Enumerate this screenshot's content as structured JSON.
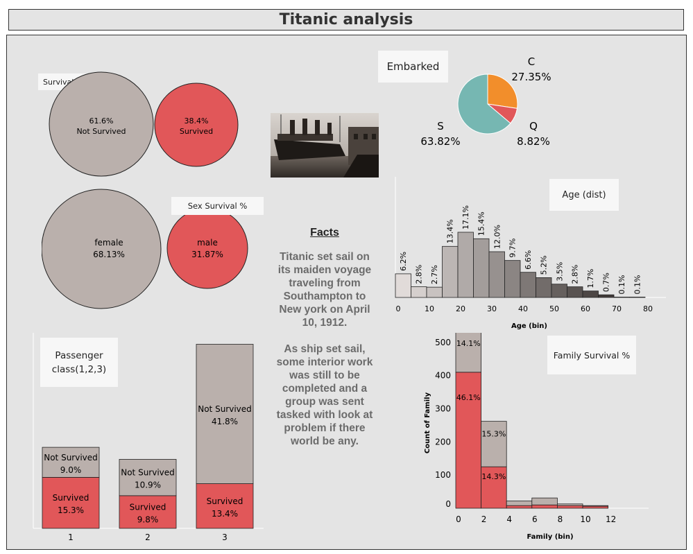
{
  "title": "Titanic analysis",
  "survival_bubbles": {
    "label": "Survival %",
    "items": [
      {
        "pct": "61.6%",
        "name": "Not Survived",
        "color": "#bab0ac"
      },
      {
        "pct": "38.4%",
        "name": "Survived",
        "color": "#e15759"
      }
    ]
  },
  "sex_bubbles": {
    "label": "Sex Survival %",
    "items": [
      {
        "name": "female",
        "pct": "68.13%",
        "color": "#bab0ac"
      },
      {
        "name": "male",
        "pct": "31.87%",
        "color": "#e15759"
      }
    ]
  },
  "embarked": {
    "label": "Embarked",
    "slices": [
      {
        "name": "C",
        "pct": "27.35%",
        "value": 27.35,
        "color": "#f28e2b"
      },
      {
        "name": "Q",
        "pct": "8.82%",
        "value": 8.82,
        "color": "#e15759"
      },
      {
        "name": "S",
        "pct": "63.82%",
        "value": 63.82,
        "color": "#76b7b2"
      }
    ]
  },
  "facts": {
    "heading": "Facts",
    "p1": "Titanic set sail on its maiden voyage traveling from Southampton to New york on April 10, 1912.",
    "p2": "As ship set sail, some interior work was still to be completed and a group was sent tasked with look at problem if there world be any."
  },
  "chart_data": [
    {
      "type": "bar",
      "title": "Age (dist)",
      "xlabel": "Age (bin)",
      "x_ticks": [
        0,
        10,
        20,
        30,
        40,
        50,
        60,
        70,
        80
      ],
      "bin_width": 5,
      "bins": [
        0,
        5,
        10,
        15,
        20,
        25,
        30,
        35,
        40,
        45,
        50,
        55,
        60,
        65,
        70,
        75,
        80
      ],
      "values": [
        6.2,
        2.8,
        2.7,
        13.4,
        17.1,
        15.4,
        12.0,
        9.7,
        6.6,
        5.2,
        3.5,
        2.8,
        1.7,
        0.7,
        0.1,
        0.1
      ],
      "labels": [
        "6.2%",
        "2.8%",
        "2.7%",
        "13.4%",
        "17.1%",
        "15.4%",
        "12.0%",
        "9.7%",
        "6.6%",
        "5.2%",
        "3.5%",
        "2.8%",
        "1.7%",
        "0.7%",
        "0.1%",
        "0.1%"
      ]
    },
    {
      "type": "bar",
      "title": "Passenger class(1,2,3)",
      "stacked": true,
      "categories": [
        "1",
        "2",
        "3"
      ],
      "series": [
        {
          "name": "Survived",
          "values": [
            15.3,
            9.8,
            13.4
          ],
          "labels": [
            "15.3%",
            "9.8%",
            "13.4%"
          ],
          "color": "#e15759"
        },
        {
          "name": "Not Survived",
          "values": [
            9.0,
            10.9,
            41.8
          ],
          "labels": [
            "9.0%",
            "10.9%",
            "41.8%"
          ],
          "color": "#bab0ac"
        }
      ]
    },
    {
      "type": "bar",
      "title": "Family Survival %",
      "stacked": true,
      "xlabel": "Family (bin)",
      "ylabel": "Count of Family",
      "x_ticks": [
        0,
        2,
        4,
        6,
        8,
        10,
        12
      ],
      "y_ticks": [
        0,
        100,
        200,
        300,
        400,
        500
      ],
      "ylim": [
        0,
        535
      ],
      "bin_width": 2,
      "bins": [
        0,
        2,
        4,
        6,
        8,
        10
      ],
      "survived": [
        410,
        125,
        8,
        10,
        8,
        6
      ],
      "not_survived": [
        125,
        137,
        14,
        21,
        5,
        2
      ],
      "labels": [
        {
          "bin": 0,
          "series": "Not Survived",
          "text": "14.1%"
        },
        {
          "bin": 0,
          "series": "Survived",
          "text": "46.1%"
        },
        {
          "bin": 2,
          "series": "Not Survived",
          "text": "15.3%"
        },
        {
          "bin": 2,
          "series": "Survived",
          "text": "14.3%"
        }
      ]
    }
  ]
}
